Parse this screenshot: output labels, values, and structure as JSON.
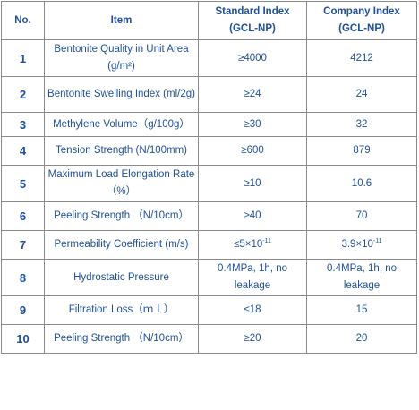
{
  "table": {
    "headers": {
      "no": "No.",
      "item": "Item",
      "standard": "Standard Index (GCL-NP)",
      "company": "Company Index (GCL-NP)"
    },
    "rows": [
      {
        "no": "1",
        "item": "Bentonite Quality in Unit Area (g/m²)",
        "standard": "≥4000",
        "company": "4212"
      },
      {
        "no": "2",
        "item": "Bentonite Swelling Index (ml/2g)",
        "standard": "≥24",
        "company": "24"
      },
      {
        "no": "3",
        "item": "Methylene Volume（g/100g）",
        "standard": "≥30",
        "company": "32"
      },
      {
        "no": "4",
        "item": "Tension Strength (N/100mm)",
        "standard": "≥600",
        "company": "879"
      },
      {
        "no": "5",
        "item": "Maximum Load Elongation Rate （%）",
        "standard": "≥10",
        "company": "10.6"
      },
      {
        "no": "6",
        "item": "Peeling Strength （N/10cm）",
        "standard": "≥40",
        "company": "70"
      },
      {
        "no": "7",
        "item": "Permeability Coefficient (m/s)",
        "standard": "≤5×10",
        "standard_exp": "-11",
        "company": "3.9×10",
        "company_exp": "-11"
      },
      {
        "no": "8",
        "item": "Hydrostatic Pressure",
        "standard": "0.4MPa, 1h, no leakage",
        "company": "0.4MPa, 1h, no leakage"
      },
      {
        "no": "9",
        "item": "Filtration Loss（ｍｌ）",
        "standard": "≤18",
        "company": "15"
      },
      {
        "no": "10",
        "item": "Peeling Strength （N/10cm）",
        "standard": "≥20",
        "company": "20"
      }
    ]
  }
}
